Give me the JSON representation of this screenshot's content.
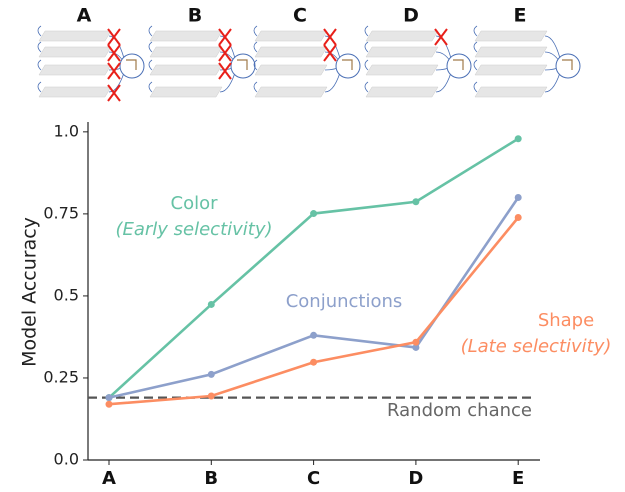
{
  "chart_data": {
    "type": "line",
    "y_label": "Model Accuracy",
    "categories": [
      "A",
      "B",
      "C",
      "D",
      "E"
    ],
    "series": [
      {
        "name": "Color",
        "color": "#66c2a5",
        "values": [
          0.19,
          0.474,
          0.751,
          0.787,
          0.979
        ]
      },
      {
        "name": "Conjunctions",
        "color": "#8da0cb",
        "values": [
          0.19,
          0.261,
          0.38,
          0.343,
          0.8
        ]
      },
      {
        "name": "Shape",
        "color": "#fc8d62",
        "values": [
          0.17,
          0.195,
          0.298,
          0.359,
          0.739
        ]
      }
    ],
    "annotations": [
      "(Early selectivity)",
      "(Late selectivity)"
    ],
    "reference_line": {
      "label": "Random chance",
      "value": 0.19,
      "color": "#555555"
    },
    "ylim": [
      0,
      1.03
    ],
    "yticks": [
      {
        "value": 0,
        "label": "0.0"
      },
      0.25,
      0.5,
      0.75,
      {
        "value": 1,
        "label": "1.0"
      }
    ]
  }
}
